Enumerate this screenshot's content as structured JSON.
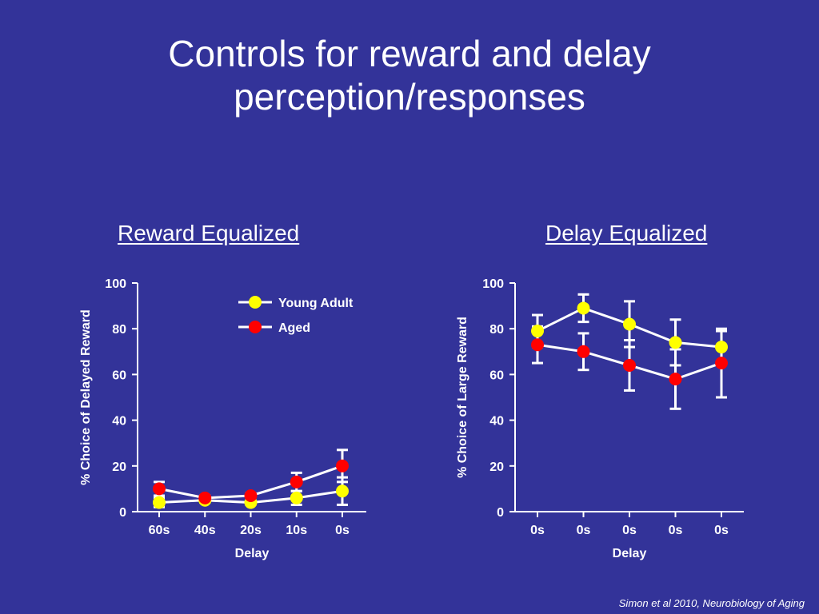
{
  "slide": {
    "title_line1": "Controls for reward and delay",
    "title_line2": "perception/responses",
    "citation": "Simon et al 2010, Neurobiology of Aging"
  },
  "colors": {
    "background": "#333399",
    "axis": "#ffffff",
    "young": "#ffff00",
    "aged": "#ff0000"
  },
  "chart_data": [
    {
      "type": "line",
      "title": "Reward Equalized",
      "xlabel": "Delay",
      "ylabel": "% Choice of Delayed Reward",
      "categories": [
        "60s",
        "40s",
        "20s",
        "10s",
        "0s"
      ],
      "ylim": [
        0,
        100
      ],
      "yticks": [
        0,
        20,
        40,
        60,
        80,
        100
      ],
      "legend": "top-right",
      "series": [
        {
          "name": "Young Adult",
          "color": "#ffff00",
          "values": [
            4,
            5,
            4,
            6,
            9
          ],
          "errors": [
            2,
            1,
            1,
            3,
            6
          ]
        },
        {
          "name": "Aged",
          "color": "#ff0000",
          "values": [
            10,
            6,
            7,
            13,
            20
          ],
          "errors": [
            3,
            1,
            1,
            4,
            7
          ]
        }
      ]
    },
    {
      "type": "line",
      "title": "Delay Equalized",
      "xlabel": "Delay",
      "ylabel": "% Choice of Large Reward",
      "categories": [
        "0s",
        "0s",
        "0s",
        "0s",
        "0s"
      ],
      "ylim": [
        0,
        100
      ],
      "yticks": [
        0,
        20,
        40,
        60,
        80,
        100
      ],
      "series": [
        {
          "name": "Young Adult",
          "color": "#ffff00",
          "values": [
            79,
            89,
            82,
            74,
            72
          ],
          "errors": [
            7,
            6,
            10,
            10,
            7
          ]
        },
        {
          "name": "Aged",
          "color": "#ff0000",
          "values": [
            73,
            70,
            64,
            58,
            65
          ],
          "errors": [
            8,
            8,
            11,
            13,
            15
          ]
        }
      ]
    }
  ]
}
